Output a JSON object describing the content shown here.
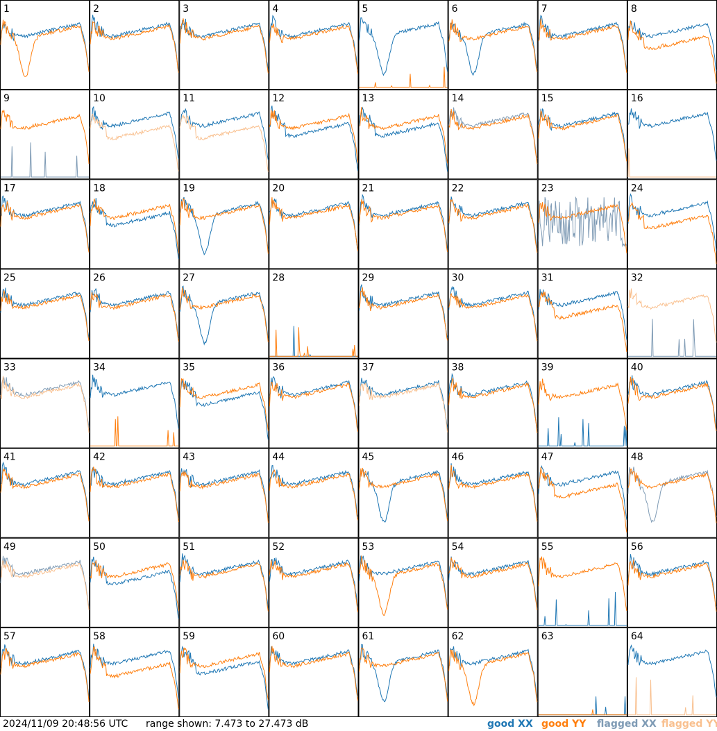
{
  "footer": {
    "timestamp": "2024/11/09 20:48:56 UTC",
    "range_text": "range shown: 7.473 to 27.473 dB"
  },
  "legend": [
    {
      "key": "good-xx",
      "word": "good",
      "pol": "XX",
      "color": "#1f77b4"
    },
    {
      "key": "good-yy",
      "word": "good",
      "pol": "YY",
      "color": "#ff7f0e"
    },
    {
      "key": "flagged-xx",
      "word": "flagged",
      "pol": "XX",
      "color": "#7f9bb5"
    },
    {
      "key": "flagged-yy",
      "word": "flagged",
      "pol": "YY",
      "color": "#f9c08f"
    }
  ],
  "chart_data": {
    "type": "line",
    "grid_layout": {
      "rows": 8,
      "columns": 8
    },
    "ylim": [
      7.473,
      27.473
    ],
    "yunit": "dB",
    "panels": [
      {
        "label": "1",
        "xx": "good",
        "yy": "good",
        "xx_shape": "normal",
        "yy_shape": "dip"
      },
      {
        "label": "2",
        "xx": "good",
        "yy": "good",
        "xx_shape": "normal",
        "yy_shape": "normal"
      },
      {
        "label": "3",
        "xx": "good",
        "yy": "good",
        "xx_shape": "normal",
        "yy_shape": "normal"
      },
      {
        "label": "4",
        "xx": "good",
        "yy": "good",
        "xx_shape": "normal",
        "yy_shape": "normal"
      },
      {
        "label": "5",
        "xx": "good",
        "yy": "good",
        "xx_shape": "dip",
        "yy_shape": "dead"
      },
      {
        "label": "6",
        "xx": "good",
        "yy": "good",
        "xx_shape": "dip",
        "yy_shape": "normal"
      },
      {
        "label": "7",
        "xx": "good",
        "yy": "good",
        "xx_shape": "normal",
        "yy_shape": "normal"
      },
      {
        "label": "8",
        "xx": "good",
        "yy": "good",
        "xx_shape": "normal",
        "yy_shape": "low"
      },
      {
        "label": "9",
        "xx": "flagged",
        "yy": "good",
        "xx_shape": "dead",
        "yy_shape": "normal"
      },
      {
        "label": "10",
        "xx": "good",
        "yy": "flagged",
        "xx_shape": "normal",
        "yy_shape": "low"
      },
      {
        "label": "11",
        "xx": "good",
        "yy": "flagged",
        "xx_shape": "normal",
        "yy_shape": "low"
      },
      {
        "label": "12",
        "xx": "good",
        "yy": "good",
        "xx_shape": "low",
        "yy_shape": "normal"
      },
      {
        "label": "13",
        "xx": "good",
        "yy": "good",
        "xx_shape": "low",
        "yy_shape": "normal"
      },
      {
        "label": "14",
        "xx": "flagged",
        "yy": "good",
        "xx_shape": "normal",
        "yy_shape": "normal"
      },
      {
        "label": "15",
        "xx": "good",
        "yy": "good",
        "xx_shape": "normal",
        "yy_shape": "normal"
      },
      {
        "label": "16",
        "xx": "good",
        "yy": "flagged",
        "xx_shape": "normal",
        "yy_shape": "dead"
      },
      {
        "label": "17",
        "xx": "good",
        "yy": "good",
        "xx_shape": "normal",
        "yy_shape": "normal"
      },
      {
        "label": "18",
        "xx": "good",
        "yy": "good",
        "xx_shape": "low",
        "yy_shape": "normal"
      },
      {
        "label": "19",
        "xx": "good",
        "yy": "good",
        "xx_shape": "dip",
        "yy_shape": "normal"
      },
      {
        "label": "20",
        "xx": "good",
        "yy": "good",
        "xx_shape": "normal",
        "yy_shape": "normal"
      },
      {
        "label": "21",
        "xx": "good",
        "yy": "good",
        "xx_shape": "normal",
        "yy_shape": "normal"
      },
      {
        "label": "22",
        "xx": "good",
        "yy": "good",
        "xx_shape": "normal",
        "yy_shape": "normal"
      },
      {
        "label": "23",
        "xx": "flagged",
        "yy": "good",
        "xx_shape": "noisy",
        "yy_shape": "normal"
      },
      {
        "label": "24",
        "xx": "good",
        "yy": "good",
        "xx_shape": "normal",
        "yy_shape": "low"
      },
      {
        "label": "25",
        "xx": "good",
        "yy": "good",
        "xx_shape": "normal",
        "yy_shape": "normal"
      },
      {
        "label": "26",
        "xx": "good",
        "yy": "good",
        "xx_shape": "normal",
        "yy_shape": "normal"
      },
      {
        "label": "27",
        "xx": "good",
        "yy": "good",
        "xx_shape": "dip",
        "yy_shape": "normal"
      },
      {
        "label": "28",
        "xx": "good",
        "yy": "good",
        "xx_shape": "dead",
        "yy_shape": "dead"
      },
      {
        "label": "29",
        "xx": "good",
        "yy": "good",
        "xx_shape": "normal",
        "yy_shape": "normal"
      },
      {
        "label": "30",
        "xx": "good",
        "yy": "good",
        "xx_shape": "normal",
        "yy_shape": "normal"
      },
      {
        "label": "31",
        "xx": "good",
        "yy": "good",
        "xx_shape": "normal",
        "yy_shape": "low"
      },
      {
        "label": "32",
        "xx": "flagged",
        "yy": "flagged",
        "xx_shape": "dead",
        "yy_shape": "normal"
      },
      {
        "label": "33",
        "xx": "flagged",
        "yy": "flagged",
        "xx_shape": "normal",
        "yy_shape": "normal"
      },
      {
        "label": "34",
        "xx": "good",
        "yy": "good",
        "xx_shape": "normal",
        "yy_shape": "dead"
      },
      {
        "label": "35",
        "xx": "good",
        "yy": "good",
        "xx_shape": "low",
        "yy_shape": "normal"
      },
      {
        "label": "36",
        "xx": "good",
        "yy": "good",
        "xx_shape": "normal",
        "yy_shape": "normal"
      },
      {
        "label": "37",
        "xx": "good",
        "yy": "flagged",
        "xx_shape": "normal",
        "yy_shape": "normal"
      },
      {
        "label": "38",
        "xx": "good",
        "yy": "good",
        "xx_shape": "normal",
        "yy_shape": "normal"
      },
      {
        "label": "39",
        "xx": "good",
        "yy": "good",
        "xx_shape": "dead",
        "yy_shape": "normal"
      },
      {
        "label": "40",
        "xx": "good",
        "yy": "good",
        "xx_shape": "normal",
        "yy_shape": "normal"
      },
      {
        "label": "41",
        "xx": "good",
        "yy": "good",
        "xx_shape": "normal",
        "yy_shape": "normal"
      },
      {
        "label": "42",
        "xx": "good",
        "yy": "good",
        "xx_shape": "normal",
        "yy_shape": "normal"
      },
      {
        "label": "43",
        "xx": "good",
        "yy": "good",
        "xx_shape": "normal",
        "yy_shape": "normal"
      },
      {
        "label": "44",
        "xx": "good",
        "yy": "good",
        "xx_shape": "normal",
        "yy_shape": "normal"
      },
      {
        "label": "45",
        "xx": "good",
        "yy": "good",
        "xx_shape": "dip",
        "yy_shape": "normal"
      },
      {
        "label": "46",
        "xx": "good",
        "yy": "good",
        "xx_shape": "normal",
        "yy_shape": "normal"
      },
      {
        "label": "47",
        "xx": "good",
        "yy": "good",
        "xx_shape": "normal",
        "yy_shape": "low"
      },
      {
        "label": "48",
        "xx": "flagged",
        "yy": "good",
        "xx_shape": "dip",
        "yy_shape": "normal"
      },
      {
        "label": "49",
        "xx": "flagged",
        "yy": "flagged",
        "xx_shape": "normal",
        "yy_shape": "normal"
      },
      {
        "label": "50",
        "xx": "good",
        "yy": "good",
        "xx_shape": "low",
        "yy_shape": "normal"
      },
      {
        "label": "51",
        "xx": "good",
        "yy": "good",
        "xx_shape": "normal",
        "yy_shape": "normal"
      },
      {
        "label": "52",
        "xx": "good",
        "yy": "good",
        "xx_shape": "normal",
        "yy_shape": "normal"
      },
      {
        "label": "53",
        "xx": "good",
        "yy": "good",
        "xx_shape": "normal",
        "yy_shape": "dip"
      },
      {
        "label": "54",
        "xx": "good",
        "yy": "good",
        "xx_shape": "normal",
        "yy_shape": "normal"
      },
      {
        "label": "55",
        "xx": "good",
        "yy": "good",
        "xx_shape": "dead",
        "yy_shape": "normal"
      },
      {
        "label": "56",
        "xx": "good",
        "yy": "good",
        "xx_shape": "normal",
        "yy_shape": "normal"
      },
      {
        "label": "57",
        "xx": "good",
        "yy": "good",
        "xx_shape": "normal",
        "yy_shape": "normal"
      },
      {
        "label": "58",
        "xx": "good",
        "yy": "good",
        "xx_shape": "normal",
        "yy_shape": "low"
      },
      {
        "label": "59",
        "xx": "good",
        "yy": "good",
        "xx_shape": "low",
        "yy_shape": "normal"
      },
      {
        "label": "60",
        "xx": "good",
        "yy": "good",
        "xx_shape": "normal",
        "yy_shape": "normal"
      },
      {
        "label": "61",
        "xx": "good",
        "yy": "good",
        "xx_shape": "dip",
        "yy_shape": "normal"
      },
      {
        "label": "62",
        "xx": "good",
        "yy": "good",
        "xx_shape": "normal",
        "yy_shape": "dip"
      },
      {
        "label": "63",
        "xx": "good",
        "yy": "good",
        "xx_shape": "dead",
        "yy_shape": "dead"
      },
      {
        "label": "64",
        "xx": "good",
        "yy": "flagged",
        "xx_shape": "normal",
        "yy_shape": "dead"
      }
    ]
  }
}
